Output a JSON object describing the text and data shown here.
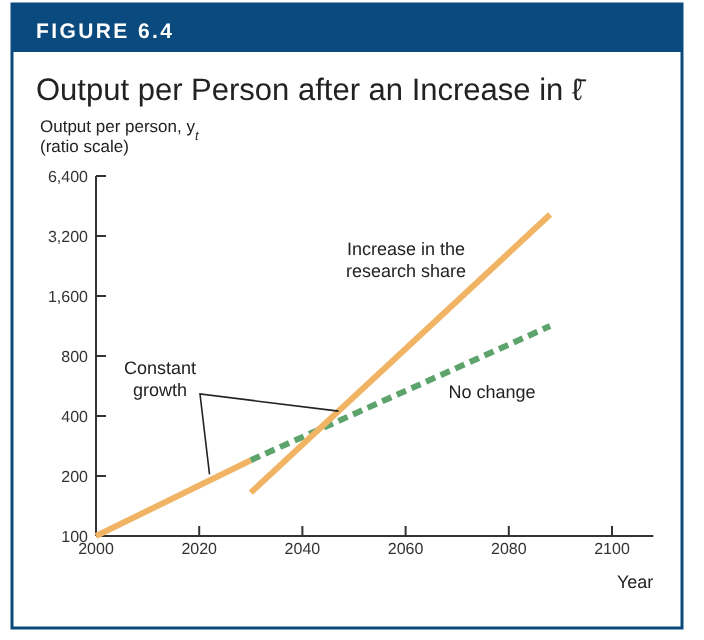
{
  "chart_data": {
    "type": "line",
    "title": "Output per Person after an Increase in ℓ̄",
    "ylabel": "Output per person, y$_{t}$\n(ratio scale)",
    "xlabel": "Year",
    "annotations": [
      "FIGURE 6.4",
      "Constant growth"
    ],
    "log": "y",
    "xlim": [
      2000,
      2108
    ],
    "xticks": [
      2000,
      2020,
      2040,
      2060,
      2080,
      2100
    ],
    "ylim": [
      100,
      6400
    ],
    "yticks": [
      100,
      200,
      400,
      800,
      {
        "value": 1600,
        "label": "1,600"
      },
      {
        "value": 3200,
        "label": "3,200"
      },
      {
        "value": 6400,
        "label": "6,400"
      }
    ],
    "grid": false,
    "series": [
      {
        "color": "#f0b464",
        "x": [
          2000,
          2030
        ],
        "values": [
          100,
          240
        ],
        "line_style": "solid"
      },
      {
        "name": "No change",
        "color": "#5da36c",
        "x": [
          2030,
          2088
        ],
        "values": [
          240,
          1130
        ],
        "line_style": "dashed"
      },
      {
        "name": "Increase in the research share",
        "color": "#f0b464",
        "x": [
          2030,
          2088
        ],
        "values": [
          165,
          4100
        ],
        "line_style": "solid"
      }
    ]
  }
}
